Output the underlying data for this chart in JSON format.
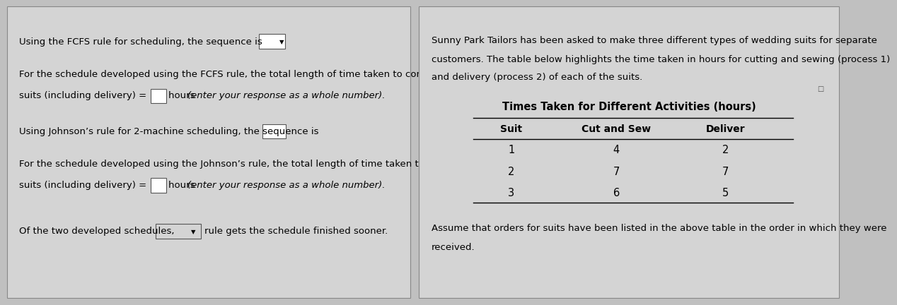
{
  "bg_color": "#c0c0c0",
  "panel_bg": "#d4d4d4",
  "left_panel": {
    "fcfs_line1": "Using the FCFS rule for scheduling, the sequence is",
    "fcfs_line2": "For the schedule developed using the FCFS rule, the total length of time taken to complete the three",
    "fcfs_line3a": "suits (including delivery) = ",
    "fcfs_line3b": "hours ",
    "fcfs_line3c": "(enter your response as a whole number).",
    "johnson_line1": "Using Johnson’s rule for 2-machine scheduling, the sequence is",
    "johnson_line2": "For the schedule developed using the Johnson’s rule, the total length of time taken to complete the three",
    "johnson_line3a": "suits (including delivery) = ",
    "johnson_line3b": "hours ",
    "johnson_line3c": "(enter your response as a whole number).",
    "final_line1": "Of the two developed schedules,",
    "final_line2": "rule gets the schedule finished sooner."
  },
  "right_panel": {
    "intro_text": [
      "Sunny Park Tailors has been asked to make three different types of wedding suits for separate",
      "customers. The table below highlights the time taken in hours for cutting and sewing (process 1)",
      "and delivery (process 2) of each of the suits."
    ],
    "table_title": "Times Taken for Different Activities (hours)",
    "table_headers": [
      "Suit",
      "Cut and Sew",
      "Deliver"
    ],
    "table_data": [
      [
        1,
        4,
        2
      ],
      [
        2,
        7,
        7
      ],
      [
        3,
        6,
        5
      ]
    ],
    "footer_text": [
      "Assume that orders for suits have been listed in the above table in the order in which they were",
      "received."
    ]
  }
}
